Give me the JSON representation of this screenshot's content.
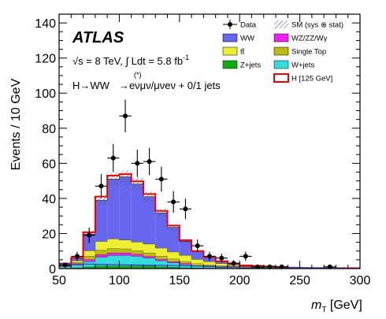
{
  "chart_data": {
    "type": "bar",
    "stacked_histogram": true,
    "title": "",
    "experiment_label": "ATLAS",
    "annotations": {
      "energy": "√s = 8 TeV, ∫ Ldt = 5.8 fb",
      "energy_superscript": "-1",
      "process_main": "H→WW",
      "process_superscript": "(*)",
      "process_rest": "→eνμν/μνeν + 0/1 jets"
    },
    "xlabel": "m",
    "xlabel_sub": "T",
    "xlabel_unit": " [GeV]",
    "ylabel": "Events / 10 GeV",
    "xlim": [
      50,
      300
    ],
    "ylim": [
      0,
      145
    ],
    "xticks": [
      50,
      100,
      150,
      200,
      250,
      300
    ],
    "yticks": [
      0,
      20,
      40,
      60,
      80,
      100,
      120,
      140
    ],
    "bin_edges": [
      50,
      60,
      70,
      80,
      90,
      100,
      110,
      120,
      130,
      140,
      150,
      160,
      170,
      180,
      190,
      200,
      210,
      220,
      230,
      240,
      250,
      260,
      270,
      280,
      290,
      300
    ],
    "series": [
      {
        "name": "Z+jets",
        "color": "#11aa11",
        "values": [
          0.3,
          0.5,
          1.0,
          1.5,
          1.5,
          1.5,
          1.5,
          1.5,
          1.0,
          0.8,
          0.5,
          0.4,
          0.3,
          0.2,
          0.2,
          0.1,
          0.1,
          0.1,
          0.1,
          0,
          0,
          0,
          0,
          0,
          0
        ]
      },
      {
        "name": "W+jets",
        "color": "#33dddd",
        "values": [
          0.8,
          1.5,
          3.0,
          5.0,
          6.0,
          6.0,
          5.5,
          4.5,
          3.5,
          2.5,
          1.8,
          1.0,
          0.7,
          0.5,
          0.3,
          0.2,
          0.2,
          0.1,
          0.1,
          0,
          0,
          0,
          0,
          0,
          0
        ]
      },
      {
        "name": "WZ/ZZ/Wγ",
        "color": "#ee22ee",
        "values": [
          0.4,
          0.7,
          1.2,
          1.5,
          1.5,
          1.5,
          1.2,
          1.0,
          0.9,
          0.7,
          0.6,
          0.4,
          0.3,
          0.2,
          0.2,
          0.1,
          0.1,
          0.1,
          0.1,
          0,
          0,
          0,
          0,
          0,
          0
        ]
      },
      {
        "name": "Single Top",
        "color": "#bbbb11",
        "values": [
          0.3,
          0.8,
          2.0,
          2.5,
          2.5,
          2.3,
          2.0,
          2.0,
          1.8,
          1.5,
          1.2,
          1.0,
          0.7,
          0.5,
          0.4,
          0.3,
          0.2,
          0.2,
          0.1,
          0.1,
          0,
          0,
          0,
          0,
          0
        ]
      },
      {
        "name": "tt̄",
        "color": "#eeee33",
        "values": [
          0.5,
          1.0,
          3.0,
          5.0,
          5.5,
          5.0,
          5.0,
          5.0,
          4.5,
          4.0,
          3.5,
          2.5,
          2.0,
          1.5,
          1.0,
          0.8,
          0.6,
          0.5,
          0.4,
          0.3,
          0.2,
          0.2,
          0.1,
          0.1,
          0.1
        ]
      },
      {
        "name": "WW",
        "color": "#6666ee",
        "values": [
          0.5,
          1.5,
          9.5,
          23.5,
          34.0,
          36.0,
          33.0,
          27.0,
          20.0,
          14.0,
          8.0,
          4.5,
          2.5,
          1.2,
          0.7,
          0.3,
          0.3,
          0.2,
          0.1,
          0.1,
          0.1,
          0.1,
          0.1,
          0.1,
          0.1
        ]
      },
      {
        "name": "H [125 GeV]",
        "color": "#ee0000",
        "outline": true,
        "values": [
          0.1,
          0.2,
          1.0,
          2.0,
          2.0,
          1.5,
          1.5,
          1.5,
          1.2,
          1.0,
          0.6,
          0.2,
          0.2,
          0.1,
          0.1,
          0,
          0,
          0,
          0,
          0,
          0,
          0,
          0,
          0,
          0
        ]
      }
    ],
    "uncertainty": {
      "name": "SM (sys ⊕ stat)",
      "fraction": 0.07
    },
    "data": {
      "name": "Data",
      "x": [
        55,
        65,
        75,
        85,
        95,
        105,
        115,
        125,
        135,
        145,
        155,
        165,
        175,
        185,
        195,
        205,
        215,
        225,
        235,
        245,
        255,
        265,
        275,
        285,
        295
      ],
      "y": [
        2,
        7,
        19,
        47,
        63,
        87,
        60,
        61,
        51,
        38,
        34,
        13,
        7,
        6,
        3,
        7,
        1,
        1,
        1,
        0,
        0,
        0,
        1,
        0,
        0
      ]
    },
    "legend": {
      "placement": "top-right",
      "entries": [
        {
          "label": "Data",
          "kind": "marker"
        },
        {
          "label": "SM (sys ⊕ stat)",
          "kind": "hatch"
        },
        {
          "label": "WW",
          "kind": "fill",
          "color": "#6666ee"
        },
        {
          "label": "WZ/ZZ/Wγ",
          "kind": "fill",
          "color": "#ee22ee"
        },
        {
          "label": "tt̄",
          "kind": "fill",
          "color": "#eeee33"
        },
        {
          "label": "Single Top",
          "kind": "fill",
          "color": "#bbbb11"
        },
        {
          "label": "Z+jets",
          "kind": "fill",
          "color": "#11aa11"
        },
        {
          "label": "W+jets",
          "kind": "fill",
          "color": "#33dddd"
        },
        {
          "label": "",
          "kind": "outline",
          "color": "#ee0000"
        },
        {
          "label": "H [125 GeV]",
          "kind": "text"
        }
      ]
    },
    "grid": false
  }
}
